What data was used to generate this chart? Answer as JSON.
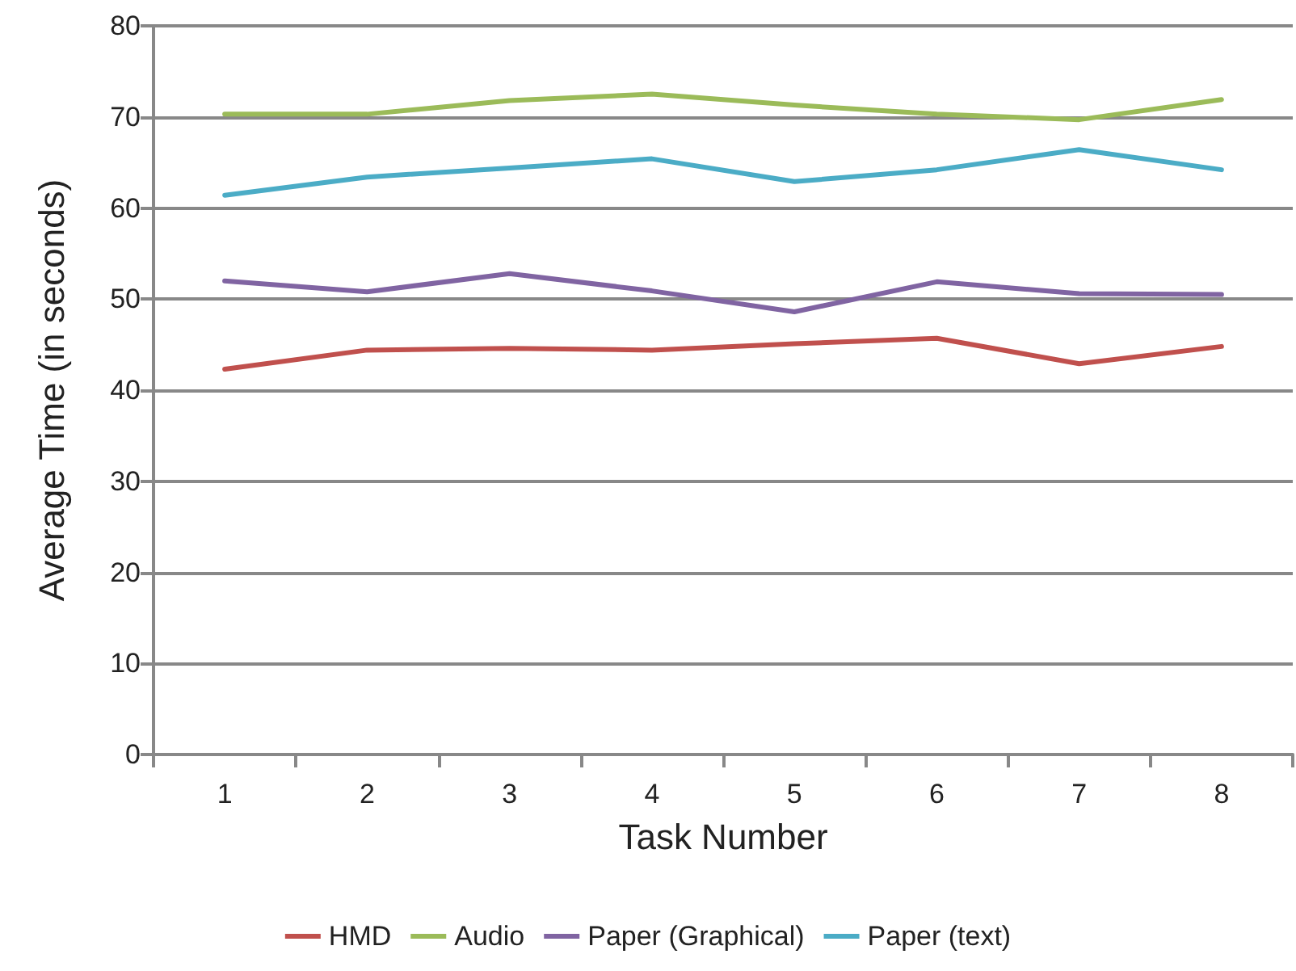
{
  "chart_data": {
    "type": "line",
    "xlabel": "Task Number",
    "ylabel": "Average Time (in seconds)",
    "categories": [
      "1",
      "2",
      "3",
      "4",
      "5",
      "6",
      "7",
      "8"
    ],
    "series": [
      {
        "name": "HMD",
        "color": "#c0504d",
        "values": [
          42.3,
          44.4,
          44.6,
          44.4,
          45.1,
          45.7,
          42.9,
          44.8
        ]
      },
      {
        "name": "Audio",
        "color": "#9bbb59",
        "values": [
          70.3,
          70.3,
          71.8,
          72.5,
          71.3,
          70.3,
          69.7,
          71.9
        ]
      },
      {
        "name": "Paper (Graphical)",
        "color": "#8064a2",
        "values": [
          52.0,
          50.8,
          52.8,
          50.9,
          48.6,
          51.9,
          50.6,
          50.5
        ]
      },
      {
        "name": "Paper (text)",
        "color": "#4bacc6",
        "values": [
          61.4,
          63.4,
          64.4,
          65.4,
          62.9,
          64.2,
          66.4,
          64.2
        ]
      }
    ],
    "ylim": [
      0,
      80
    ],
    "yticks": [
      0,
      10,
      20,
      30,
      40,
      50,
      60,
      70,
      80
    ],
    "grid": "y",
    "legend": "bottom",
    "marker": "none",
    "line_style": "solid"
  }
}
